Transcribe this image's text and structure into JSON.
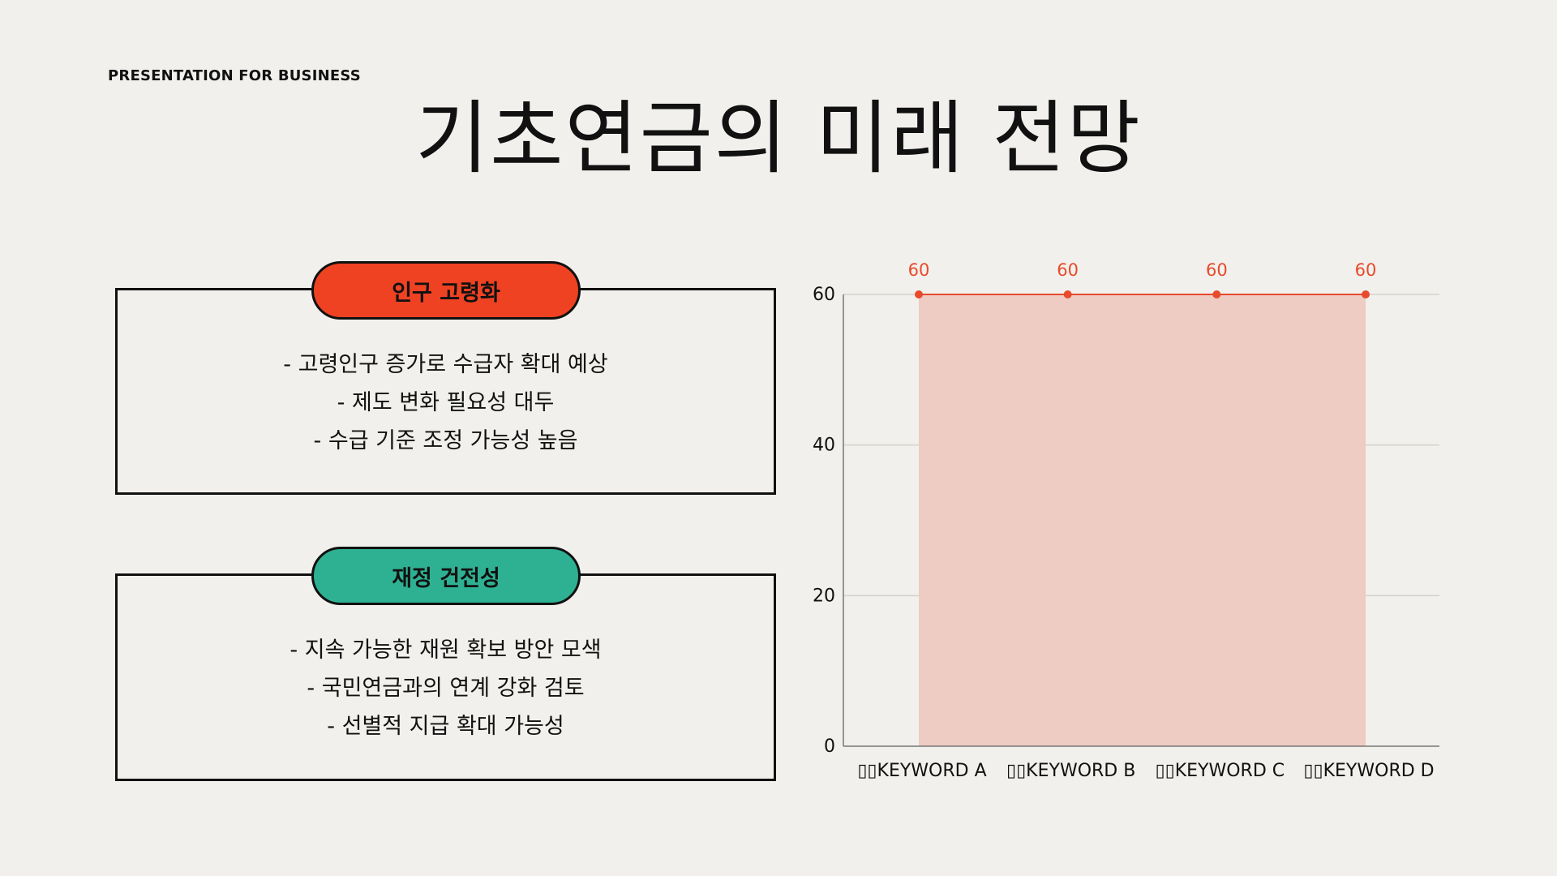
{
  "header": {
    "eyebrow": "PRESENTATION FOR BUSINESS",
    "title": "기초연금의 미래 전망"
  },
  "cards": [
    {
      "heading": "인구 고령화",
      "color": "#ef4222",
      "bullets": [
        "- 고령인구 증가로 수급자 확대 예상",
        "- 제도 변화 필요성 대두",
        "- 수급 기준 조정 가능성 높음"
      ]
    },
    {
      "heading": "재정 건전성",
      "color": "#2eb192",
      "bullets": [
        "- 지속 가능한 재원 확보 방안 모색",
        "- 국민연금과의 연계 강화 검토",
        "- 선별적 지급 확대 가능성"
      ]
    }
  ],
  "chart_data": {
    "type": "area",
    "categories": [
      "KEYWORD A",
      "KEYWORD B",
      "KEYWORD C",
      "KEYWORD D"
    ],
    "category_marker": "▯▯",
    "series": [
      {
        "values": [
          60,
          60,
          60,
          60
        ],
        "color": "#e84a2c",
        "fill": "#eecbc3"
      }
    ],
    "y_ticks": [
      0,
      20,
      40,
      60
    ],
    "ylim": [
      0,
      60
    ],
    "grid": true,
    "data_labels": true,
    "legend": "none"
  }
}
